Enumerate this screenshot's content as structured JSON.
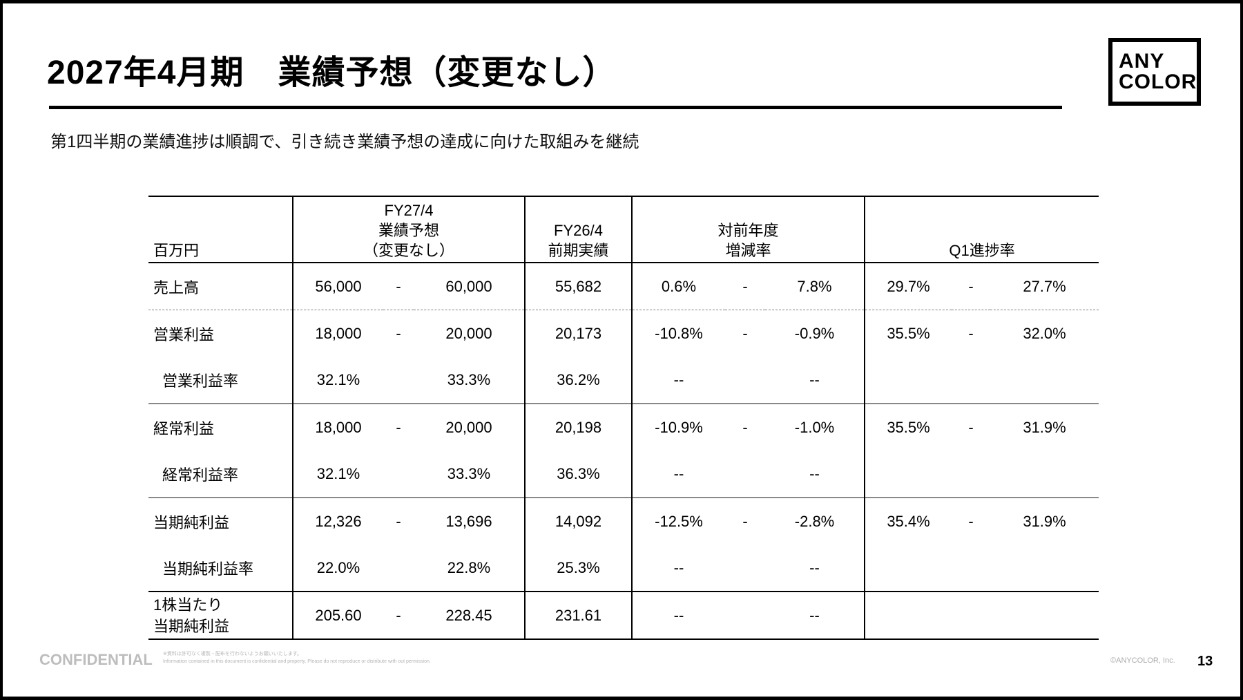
{
  "title": "2027年4月期　業績予想（変更なし）",
  "subtitle": "第1四半期の業績進捗は順調で、引き続き業績予想の達成に向けた取組みを継続",
  "logo": {
    "line1": "ANY",
    "line2": "COLOR"
  },
  "table": {
    "headers": {
      "unit": "百万円",
      "forecast": [
        "FY27/4",
        "業績予想",
        "（変更なし）"
      ],
      "prior": [
        "FY26/4",
        "前期実績"
      ],
      "yoy": [
        "対前年度",
        "増減率"
      ],
      "q1": "Q1進捗率"
    },
    "rows": [
      {
        "label": [
          "売上高"
        ],
        "f_low": "56,000",
        "f_sep": "-",
        "f_high": "60,000",
        "prior": "55,682",
        "yoy_low": "0.6%",
        "yoy_sep": "-",
        "yoy_high": "7.8%",
        "q1_a": "29.7%",
        "q1_sep": "-",
        "q1_b": "27.7%"
      },
      {
        "label": [
          "営業利益"
        ],
        "f_low": "18,000",
        "f_sep": "-",
        "f_high": "20,000",
        "prior": "20,173",
        "yoy_low": "-10.8%",
        "yoy_sep": "-",
        "yoy_high": "-0.9%",
        "q1_a": "35.5%",
        "q1_sep": "-",
        "q1_b": "32.0%"
      },
      {
        "label": [
          "営業利益率"
        ],
        "f_low": "32.1%",
        "f_sep": "",
        "f_high": "33.3%",
        "prior": "36.2%",
        "yoy_low": "--",
        "yoy_sep": "",
        "yoy_high": "--",
        "q1_a": "",
        "q1_sep": "",
        "q1_b": ""
      },
      {
        "label": [
          "経常利益"
        ],
        "f_low": "18,000",
        "f_sep": "-",
        "f_high": "20,000",
        "prior": "20,198",
        "yoy_low": "-10.9%",
        "yoy_sep": "-",
        "yoy_high": "-1.0%",
        "q1_a": "35.5%",
        "q1_sep": "-",
        "q1_b": "31.9%"
      },
      {
        "label": [
          "経常利益率"
        ],
        "f_low": "32.1%",
        "f_sep": "",
        "f_high": "33.3%",
        "prior": "36.3%",
        "yoy_low": "--",
        "yoy_sep": "",
        "yoy_high": "--",
        "q1_a": "",
        "q1_sep": "",
        "q1_b": ""
      },
      {
        "label": [
          "当期純利益"
        ],
        "f_low": "12,326",
        "f_sep": "-",
        "f_high": "13,696",
        "prior": "14,092",
        "yoy_low": "-12.5%",
        "yoy_sep": "-",
        "yoy_high": "-2.8%",
        "q1_a": "35.4%",
        "q1_sep": "-",
        "q1_b": "31.9%"
      },
      {
        "label": [
          "当期純利益率"
        ],
        "f_low": "22.0%",
        "f_sep": "",
        "f_high": "22.8%",
        "prior": "25.3%",
        "yoy_low": "--",
        "yoy_sep": "",
        "yoy_high": "--",
        "q1_a": "",
        "q1_sep": "",
        "q1_b": ""
      },
      {
        "label": [
          "1株当たり",
          "当期純利益"
        ],
        "f_low": "205.60",
        "f_sep": "-",
        "f_high": "228.45",
        "prior": "231.61",
        "yoy_low": "--",
        "yoy_sep": "",
        "yoy_high": "--",
        "q1_a": "",
        "q1_sep": "",
        "q1_b": ""
      }
    ]
  },
  "footer": {
    "confidential": "CONFIDENTIAL",
    "note_jp": "※資料は許可なく複製・配布を行わないようお願いいたします。",
    "note_en": "Information contained in this document is confidential and property. Please do not reproduce or distribute with out permission.",
    "copyright": "©ANYCOLOR, Inc.",
    "page": "13"
  }
}
